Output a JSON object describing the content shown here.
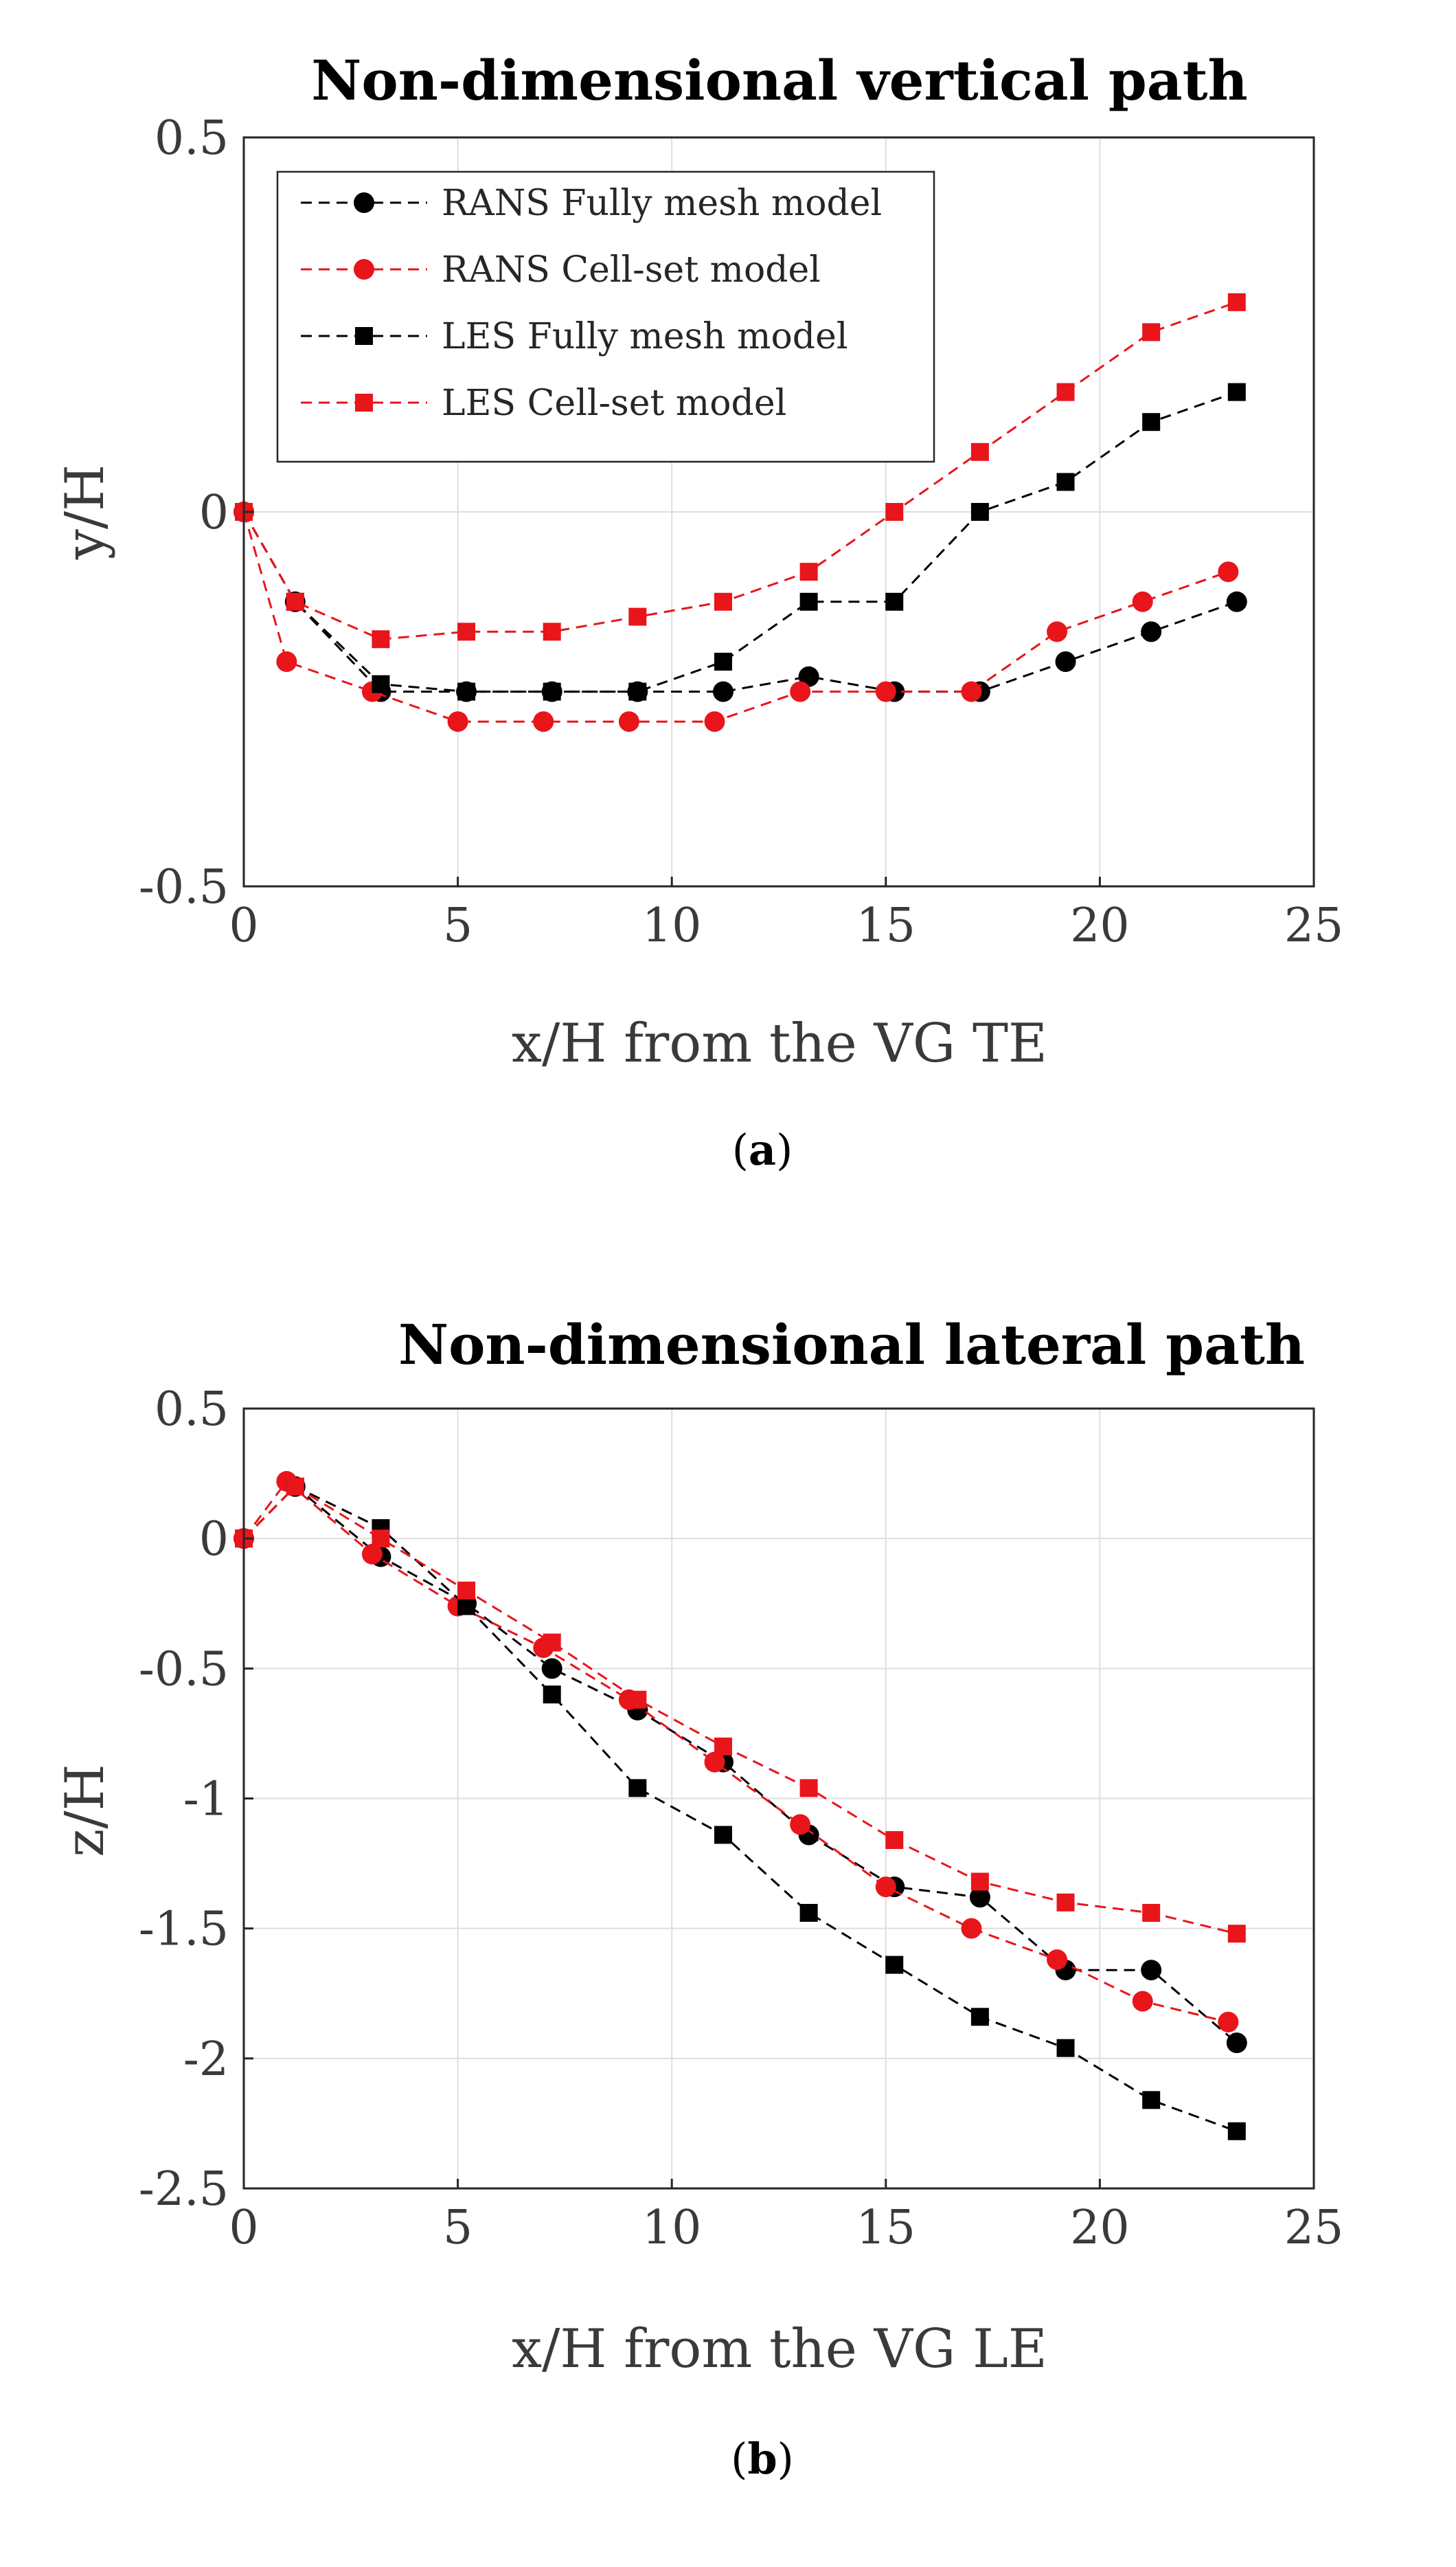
{
  "colors": {
    "black_series": "#000000",
    "red_series": "#e8151b",
    "grid": "#dedede",
    "axis": "#262626"
  },
  "chart_data": [
    {
      "type": "line",
      "title": "Non-dimensional vertical path",
      "xlabel": "x/H from the VG TE",
      "ylabel": "y/H",
      "xlim": [
        0,
        25
      ],
      "ylim": [
        -0.5,
        0.5
      ],
      "xticks": [
        0,
        5,
        10,
        15,
        20,
        25
      ],
      "xtick_labels": [
        "0",
        "5",
        "10",
        "15",
        "20",
        "25"
      ],
      "yticks": [
        0.5,
        0,
        -0.5
      ],
      "ytick_labels": [
        "0.5",
        "0",
        "-0.5"
      ],
      "grid": true,
      "legend_position": "top-left",
      "caption_open": "(",
      "caption_letter": "a",
      "caption_close": ")",
      "series": [
        {
          "name": "RANS Fully mesh model",
          "color": "#000000",
          "marker": "circle",
          "x": [
            0,
            1.2,
            3.2,
            5.2,
            7.2,
            9.2,
            11.2,
            13.2,
            15.2,
            17.2,
            19.2,
            21.2,
            23.2
          ],
          "y": [
            0,
            -0.12,
            -0.24,
            -0.24,
            -0.24,
            -0.24,
            -0.24,
            -0.22,
            -0.24,
            -0.24,
            -0.2,
            -0.16,
            -0.12
          ]
        },
        {
          "name": "RANS Cell-set model",
          "color": "#e8151b",
          "marker": "circle",
          "x": [
            0,
            1,
            3,
            5,
            7,
            9,
            11,
            13,
            15,
            17,
            19,
            21,
            23
          ],
          "y": [
            0,
            -0.2,
            -0.24,
            -0.28,
            -0.28,
            -0.28,
            -0.28,
            -0.24,
            -0.24,
            -0.24,
            -0.16,
            -0.12,
            -0.08
          ]
        },
        {
          "name": "LES Fully mesh model",
          "color": "#000000",
          "marker": "square",
          "x": [
            0,
            1.2,
            3.2,
            5.2,
            7.2,
            9.2,
            11.2,
            13.2,
            15.2,
            17.2,
            19.2,
            21.2,
            23.2
          ],
          "y": [
            0,
            -0.12,
            -0.23,
            -0.24,
            -0.24,
            -0.24,
            -0.2,
            -0.12,
            -0.12,
            0,
            0.04,
            0.12,
            0.16
          ]
        },
        {
          "name": "LES Cell-set model",
          "color": "#e8151b",
          "marker": "square",
          "x": [
            0,
            1.2,
            3.2,
            5.2,
            7.2,
            9.2,
            11.2,
            13.2,
            15.2,
            17.2,
            19.2,
            21.2,
            23.2
          ],
          "y": [
            0,
            -0.12,
            -0.17,
            -0.16,
            -0.16,
            -0.14,
            -0.12,
            -0.08,
            0,
            0.08,
            0.16,
            0.24,
            0.28
          ]
        }
      ]
    },
    {
      "type": "line",
      "title": "Non-dimensional lateral path",
      "xlabel": "x/H from the VG LE",
      "ylabel": "z/H",
      "xlim": [
        0,
        25
      ],
      "ylim": [
        -2.5,
        0.5
      ],
      "xticks": [
        0,
        5,
        10,
        15,
        20,
        25
      ],
      "xtick_labels": [
        "0",
        "5",
        "10",
        "15",
        "20",
        "25"
      ],
      "yticks": [
        0.5,
        0,
        -0.5,
        -1,
        -1.5,
        -2,
        -2.5
      ],
      "ytick_labels": [
        "0.5",
        "0",
        "-0.5",
        "-1",
        "-1.5",
        "-2",
        "-2.5"
      ],
      "grid": true,
      "legend_position": "none",
      "caption_open": "(",
      "caption_letter": "b",
      "caption_close": ")",
      "series": [
        {
          "name": "RANS Fully mesh model",
          "color": "#000000",
          "marker": "circle",
          "x": [
            0,
            1.2,
            3.2,
            5.2,
            7.2,
            9.2,
            11.2,
            13.2,
            15.2,
            17.2,
            19.2,
            21.2,
            23.2
          ],
          "y": [
            0,
            0.2,
            -0.07,
            -0.25,
            -0.5,
            -0.66,
            -0.86,
            -1.14,
            -1.34,
            -1.38,
            -1.66,
            -1.66,
            -1.94
          ]
        },
        {
          "name": "RANS Cell-set model",
          "color": "#e8151b",
          "marker": "circle",
          "x": [
            0,
            1,
            3,
            5,
            7,
            9,
            11,
            13,
            15,
            17,
            19,
            21,
            23
          ],
          "y": [
            0,
            0.22,
            -0.06,
            -0.26,
            -0.42,
            -0.62,
            -0.86,
            -1.1,
            -1.34,
            -1.5,
            -1.62,
            -1.78,
            -1.86
          ]
        },
        {
          "name": "LES Fully mesh model",
          "color": "#000000",
          "marker": "square",
          "x": [
            0,
            1.2,
            3.2,
            5.2,
            7.2,
            9.2,
            11.2,
            13.2,
            15.2,
            17.2,
            19.2,
            21.2,
            23.2
          ],
          "y": [
            0,
            0.2,
            0.04,
            -0.26,
            -0.6,
            -0.96,
            -1.14,
            -1.44,
            -1.64,
            -1.84,
            -1.96,
            -2.16,
            -2.28
          ]
        },
        {
          "name": "LES Cell-set model",
          "color": "#e8151b",
          "marker": "square",
          "x": [
            0,
            1.2,
            3.2,
            5.2,
            7.2,
            9.2,
            11.2,
            13.2,
            15.2,
            17.2,
            19.2,
            21.2,
            23.2
          ],
          "y": [
            0,
            0.2,
            0,
            -0.2,
            -0.4,
            -0.62,
            -0.8,
            -0.96,
            -1.16,
            -1.32,
            -1.4,
            -1.44,
            -1.52
          ]
        }
      ]
    }
  ]
}
